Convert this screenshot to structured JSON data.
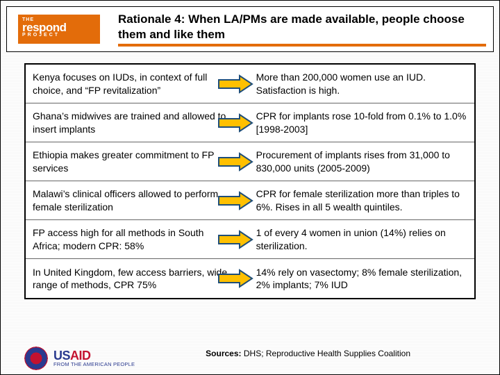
{
  "logo": {
    "the": "THE",
    "main": "respond",
    "project": "PROJECT"
  },
  "title": "Rationale 4: When LA/PMs are made available, people choose them and like them",
  "underline_color": "#e36c0a",
  "arrow": {
    "fill": "#ffc000",
    "stroke": "#1f4e79",
    "stroke_width": 2
  },
  "rows": [
    {
      "left": "Kenya focuses on IUDs, in context of full choice, and “FP revitalization”",
      "right": "More than 200,000 women use an IUD. Satisfaction is high."
    },
    {
      "left": "Ghana’s midwives are trained and allowed to insert implants",
      "right": "CPR for implants rose 10-fold from 0.1% to 1.0% [1998-2003]"
    },
    {
      "left": "Ethiopia makes greater commitment to FP services",
      "right": "Procurement of implants rises from 31,000 to 830,000 units (2005-2009)"
    },
    {
      "left": "Malawi’s clinical officers allowed to perform female sterilization",
      "right": "CPR for female sterilization more than triples to 6%. Rises in all 5 wealth quintiles."
    },
    {
      "left": "FP access high for all methods in South Africa; modern CPR: 58%",
      "right": "1 of every 4 women in union (14%) relies on sterilization."
    },
    {
      "left": "In United Kingdom, few access barriers, wide range of methods, CPR 75%",
      "right": "14% rely on vasectomy; 8% female sterilization, 2% implants; 7% IUD"
    }
  ],
  "sources_label": "Sources:",
  "sources_text": " DHS; Reproductive Health Supplies Coalition",
  "usaid": {
    "main1": "US",
    "main2": "AID",
    "sub": "FROM THE AMERICAN PEOPLE"
  }
}
